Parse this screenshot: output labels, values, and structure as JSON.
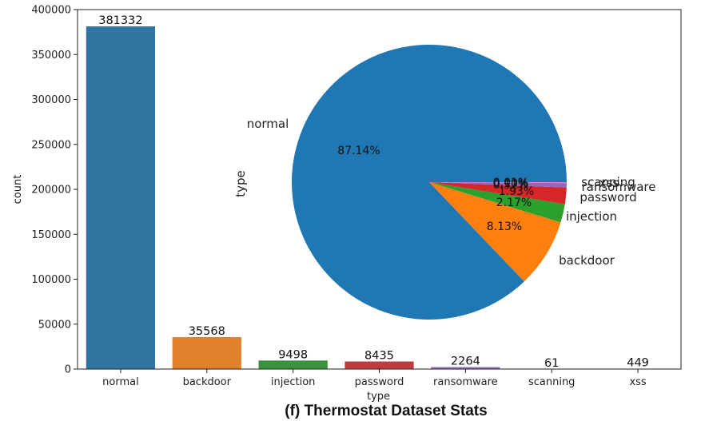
{
  "caption": "(f) Thermostat Dataset Stats",
  "chart_data": [
    {
      "type": "bar",
      "xlabel": "type",
      "ylabel": "count",
      "ylim": [
        0,
        400000
      ],
      "yticks": [
        0,
        50000,
        100000,
        150000,
        200000,
        250000,
        300000,
        350000,
        400000
      ],
      "categories": [
        "normal",
        "backdoor",
        "injection",
        "password",
        "ransomware",
        "scanning",
        "xss"
      ],
      "values": [
        381332,
        35568,
        9498,
        8435,
        2264,
        61,
        449
      ],
      "data_labels": [
        "381332",
        "35568",
        "9498",
        "8435",
        "2264",
        "61",
        "449"
      ],
      "colors": [
        "#3274a1",
        "#e1812c",
        "#3a923a",
        "#c03d3e",
        "#9372b2",
        "#845b53",
        "#d684bd"
      ]
    },
    {
      "type": "pie",
      "ylabel": "type",
      "labels": [
        "normal",
        "backdoor",
        "injection",
        "password",
        "ransomware",
        "scanning",
        "xss"
      ],
      "values": [
        87.14,
        8.13,
        2.17,
        1.93,
        0.52,
        0.01,
        0.1
      ],
      "pct_labels": [
        "87.14%",
        "8.13%",
        "2.17%",
        "1.93%",
        "0.52%",
        "0.01%",
        "0.10%"
      ],
      "colors": [
        "#1f77b4",
        "#ff7f0e",
        "#2ca02c",
        "#d62728",
        "#9467bd",
        "#8c564b",
        "#e377c2"
      ]
    }
  ]
}
